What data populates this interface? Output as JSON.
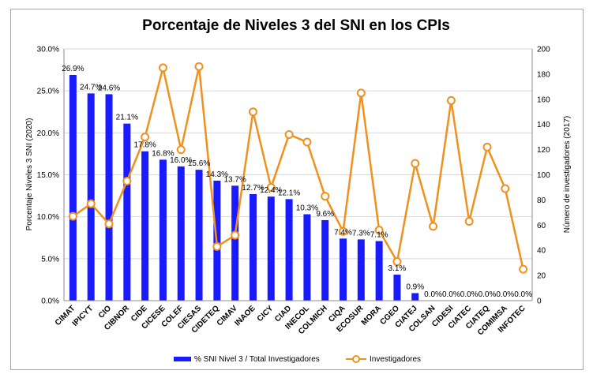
{
  "chart_data": {
    "type": "bar",
    "title": "Porcentaje de Niveles 3 del SNI en los CPIs",
    "ylabel": "Porcentaje Niveles 3 SNI (2020)",
    "y2label": "Número de investigadores (2017)",
    "ylim": [
      0,
      30
    ],
    "y2lim": [
      0,
      200
    ],
    "yticks": [
      "0.0%",
      "5.0%",
      "10.0%",
      "15.0%",
      "20.0%",
      "25.0%",
      "30.0%"
    ],
    "y2ticks": [
      "0",
      "20",
      "40",
      "60",
      "80",
      "100",
      "120",
      "140",
      "160",
      "180",
      "200"
    ],
    "grid": true,
    "legend_position": "bottom",
    "categories": [
      "CIMAT",
      "IPICYT",
      "CIO",
      "CIBNOR",
      "CIDE",
      "CICESE",
      "COLEF",
      "CIESAS",
      "CIDETEQ",
      "CIMAV",
      "INAOE",
      "CICY",
      "CIAD",
      "INECOL",
      "COLMICH",
      "CIQA",
      "ECOSUR",
      "MORA",
      "CGEO",
      "CIATEJ",
      "COLSAN",
      "CIDESI",
      "CIATEC",
      "CIATEQ",
      "COMIMSA",
      "INFOTEC"
    ],
    "series": [
      {
        "name": "% SNI Nivel 3 / Total Investigadores",
        "type": "bar",
        "axis": "left",
        "color": "#1a1aff",
        "values": [
          26.9,
          24.7,
          24.6,
          21.1,
          17.8,
          16.8,
          16.0,
          15.6,
          14.3,
          13.7,
          12.7,
          12.4,
          12.1,
          10.3,
          9.6,
          7.4,
          7.3,
          7.1,
          3.1,
          0.9,
          0.0,
          0.0,
          0.0,
          0.0,
          0.0,
          0.0
        ],
        "labels": [
          "26.9%",
          "24.7%",
          "24.6%",
          "21.1%",
          "17.8%",
          "16.8%",
          "16.0%",
          "15.6%",
          "14.3%",
          "13.7%",
          "12.7%",
          "12.4%",
          "12.1%",
          "10.3%",
          "9.6%",
          "7.4%",
          "7.3%",
          "7.1%",
          "3.1%",
          "0.9%",
          "0.0%",
          "0.0%",
          "0.0%",
          "0.0%",
          "0.0%",
          "0.0%"
        ]
      },
      {
        "name": "Investigadores",
        "type": "line",
        "axis": "right",
        "color": "#f0901e",
        "values": [
          67,
          77,
          61,
          95,
          130,
          185,
          120,
          186,
          43,
          52,
          150,
          90,
          132,
          126,
          83,
          55,
          165,
          56,
          31,
          109,
          59,
          159,
          63,
          122,
          89,
          25
        ]
      }
    ]
  }
}
